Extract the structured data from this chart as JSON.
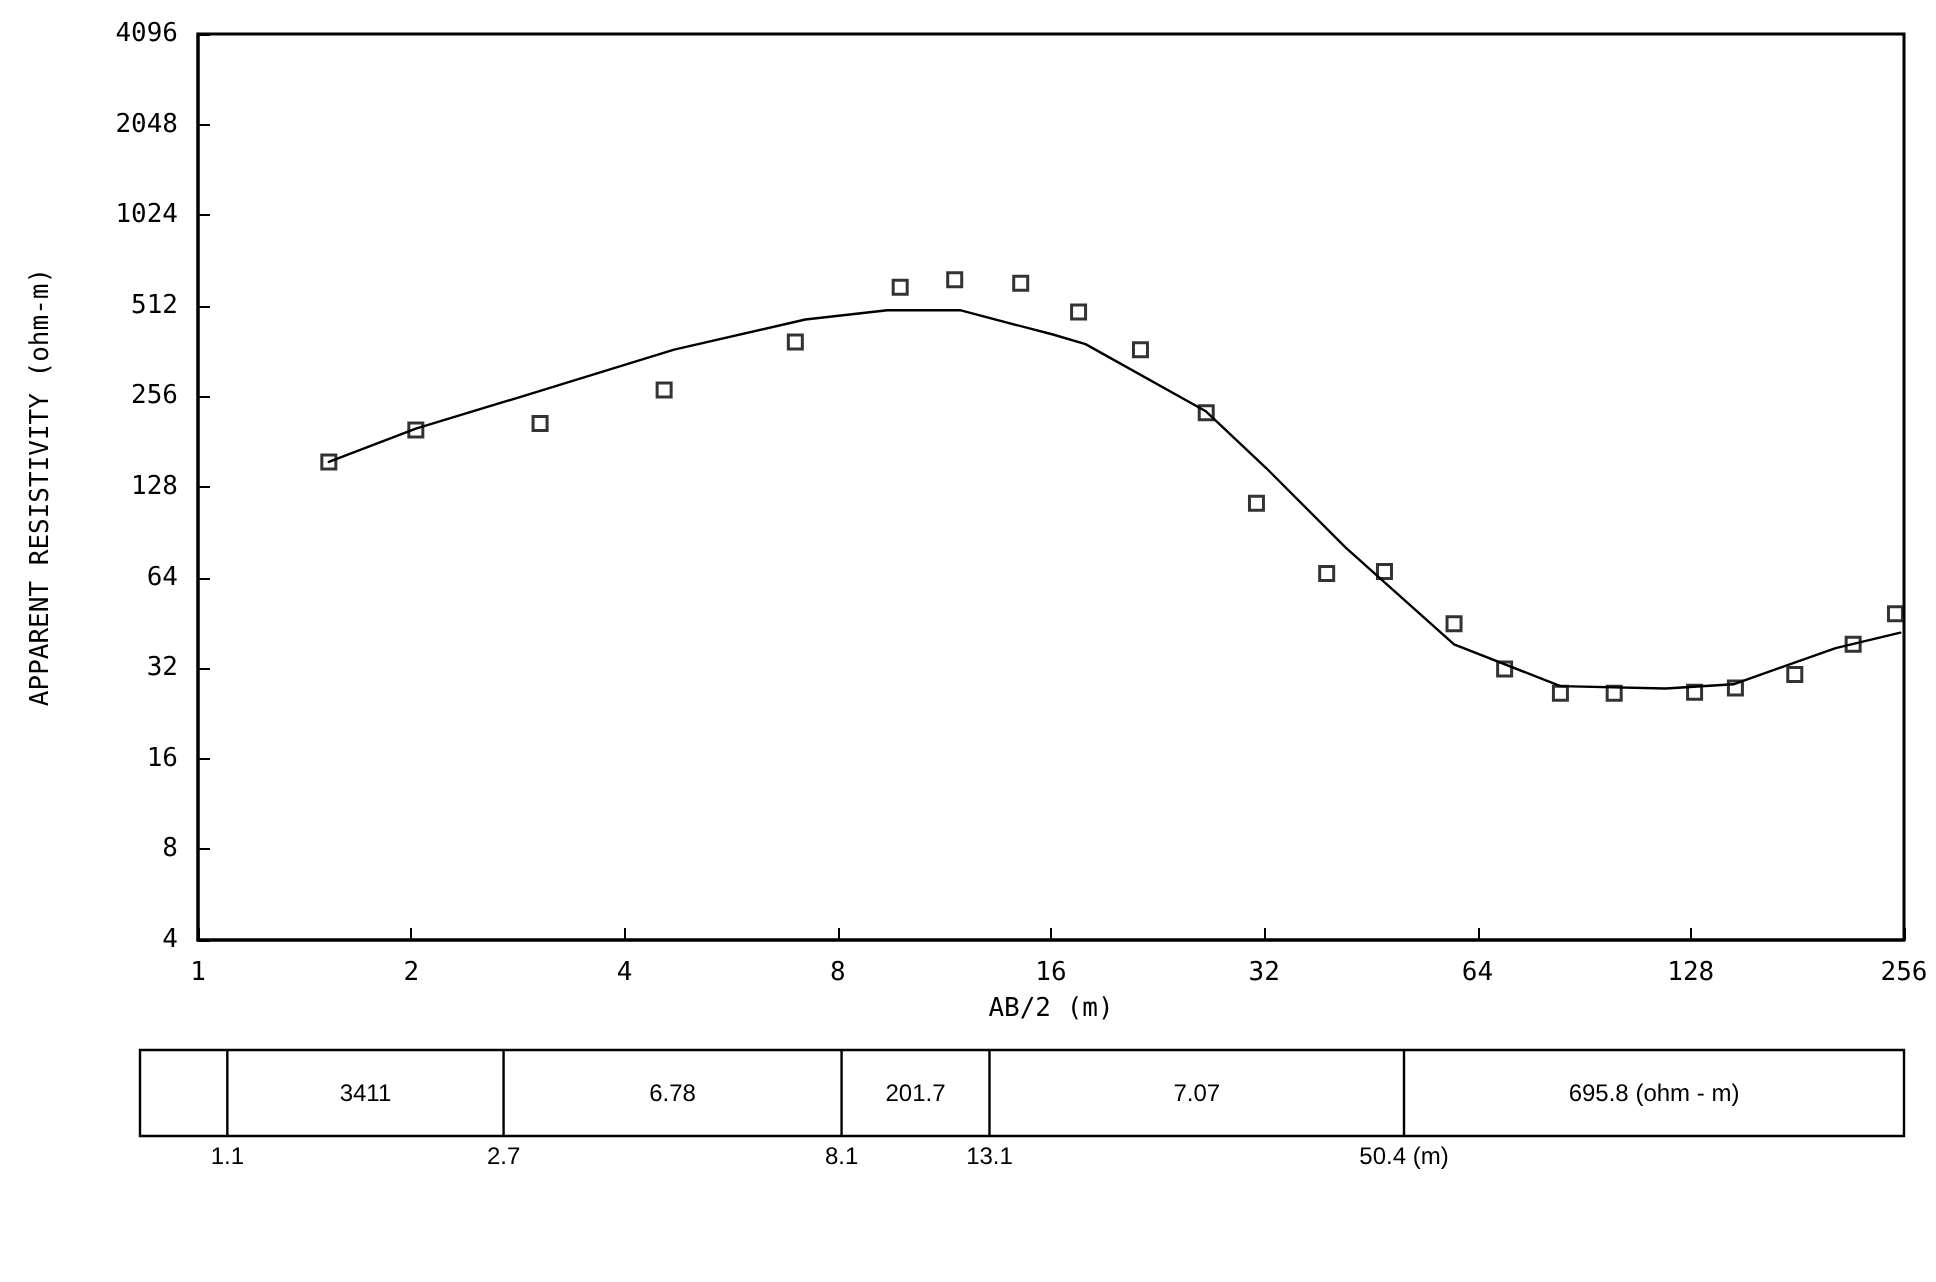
{
  "chart_data": {
    "type": "scatter",
    "xlabel": "AB/2 (m)",
    "ylabel": "APPARENT RESISTIVITY (ohm-m)",
    "log": "xy",
    "grid": false,
    "marker": "square",
    "xlim": [
      1,
      256
    ],
    "xticks": [
      1,
      2,
      4,
      8,
      16,
      32,
      64,
      128,
      256
    ],
    "ylim": [
      4,
      4096
    ],
    "yticks": [
      4,
      8,
      16,
      32,
      64,
      128,
      256,
      512,
      1024,
      2048,
      4096
    ],
    "series": [
      {
        "color": "#000000",
        "x": [
          1.53,
          2.03,
          3.04,
          4.55,
          6.97,
          9.8,
          11.7,
          14.5,
          17.5,
          21.4,
          26.5,
          31.2,
          39.2,
          47.3,
          59.3,
          69.9,
          83.8,
          99.8,
          129.6,
          148,
          179.5,
          217,
          249
        ],
        "values": [
          155,
          198,
          208,
          269,
          388,
          590,
          625,
          608,
          488,
          366,
          226,
          113,
          66,
          67,
          45,
          31.8,
          26.4,
          26.4,
          26.6,
          27.5,
          30.5,
          38.4,
          48.5
        ]
      },
      {
        "type": "line",
        "color": "#000000",
        "marker": "none",
        "line_style": "solid",
        "x": [
          1.53,
          2.03,
          2.9,
          4.7,
          7.2,
          9.4,
          11.9,
          16.1,
          17.9,
          26.5,
          32.2,
          41.7,
          59.3,
          83.8,
          118,
          147,
          205,
          253
        ],
        "values": [
          155,
          200,
          258,
          366,
          461,
          495,
          495,
          411,
          382,
          228,
          148,
          80.5,
          38.4,
          27.9,
          27.4,
          28.3,
          37.3,
          42
        ]
      }
    ],
    "annotations": [
      "3411",
      "6.78",
      "201.7",
      "7.07",
      "695.8 (ohm - m)",
      "1.1",
      "2.7",
      "8.1",
      "13.1",
      "50.4 (m)"
    ]
  }
}
